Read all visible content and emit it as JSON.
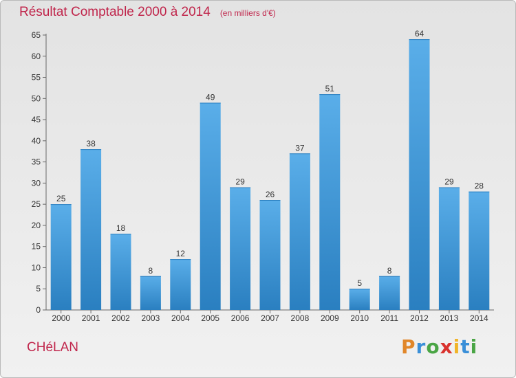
{
  "header": {
    "title": "Résultat Comptable 2000 à 2014",
    "subtitle": "(en milliers d'€)"
  },
  "footer": {
    "commune": "CHéLAN",
    "logo": "Proxiti"
  },
  "colors": {
    "title": "#c0254b",
    "bar_light": "#5aaee9",
    "bar_dark": "#2a7fc0",
    "logo_letters": [
      "#e1872a",
      "#3a8fd8",
      "#4aa545",
      "#d9322e",
      "#f0b429",
      "#3a8fd8",
      "#4aa545"
    ]
  },
  "chart_data": {
    "type": "bar",
    "title": "Résultat Comptable 2000 à 2014",
    "subtitle": "(en milliers d'€)",
    "categories": [
      "2000",
      "2001",
      "2002",
      "2003",
      "2004",
      "2005",
      "2006",
      "2007",
      "2008",
      "2009",
      "2010",
      "2011",
      "2012",
      "2013",
      "2014"
    ],
    "values": [
      25,
      38,
      18,
      8,
      12,
      49,
      29,
      26,
      37,
      51,
      5,
      8,
      64,
      29,
      28
    ],
    "ylim": [
      0,
      65
    ],
    "yticks": [
      0,
      5,
      10,
      15,
      20,
      25,
      30,
      35,
      40,
      45,
      50,
      55,
      60,
      65
    ],
    "grid": false,
    "data_labels": true
  }
}
